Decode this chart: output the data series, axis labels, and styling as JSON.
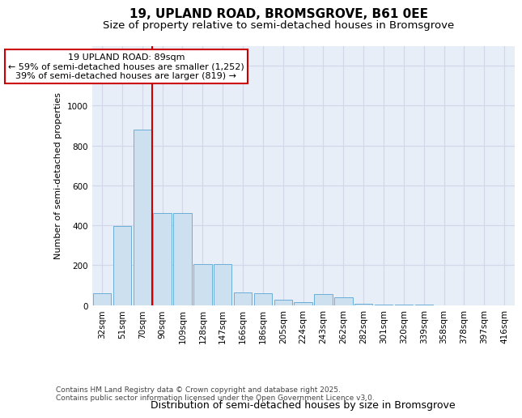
{
  "title1": "19, UPLAND ROAD, BROMSGROVE, B61 0EE",
  "title2": "Size of property relative to semi-detached houses in Bromsgrove",
  "xlabel": "Distribution of semi-detached houses by size in Bromsgrove",
  "ylabel": "Number of semi-detached properties",
  "categories": [
    "32sqm",
    "51sqm",
    "70sqm",
    "90sqm",
    "109sqm",
    "128sqm",
    "147sqm",
    "166sqm",
    "186sqm",
    "205sqm",
    "224sqm",
    "243sqm",
    "262sqm",
    "282sqm",
    "301sqm",
    "320sqm",
    "339sqm",
    "358sqm",
    "378sqm",
    "397sqm",
    "416sqm"
  ],
  "values": [
    60,
    395,
    880,
    460,
    460,
    205,
    205,
    65,
    60,
    25,
    15,
    55,
    40,
    5,
    2,
    2,
    1,
    0,
    0,
    0,
    0
  ],
  "bar_color": "#cce0f0",
  "bar_edge_color": "#6aaed6",
  "vline_x": 2.5,
  "annotation_line1": "19 UPLAND ROAD: 89sqm",
  "annotation_line2": "← 59% of semi-detached houses are smaller (1,252)",
  "annotation_line3": "39% of semi-detached houses are larger (819) →",
  "annotation_box_facecolor": "#ffffff",
  "annotation_box_edgecolor": "#cc0000",
  "vline_color": "#cc0000",
  "ylim_min": 0,
  "ylim_max": 1300,
  "yticks": [
    0,
    200,
    400,
    600,
    800,
    1000,
    1200
  ],
  "plot_bg_color": "#e8eef8",
  "footer_text": "Contains HM Land Registry data © Crown copyright and database right 2025.\nContains public sector information licensed under the Open Government Licence v3.0.",
  "title1_fontsize": 11,
  "title2_fontsize": 9.5,
  "xlabel_fontsize": 9,
  "ylabel_fontsize": 8,
  "tick_fontsize": 7.5,
  "annotation_fontsize": 8,
  "footer_fontsize": 6.5,
  "grid_color": "#d0d8e8"
}
